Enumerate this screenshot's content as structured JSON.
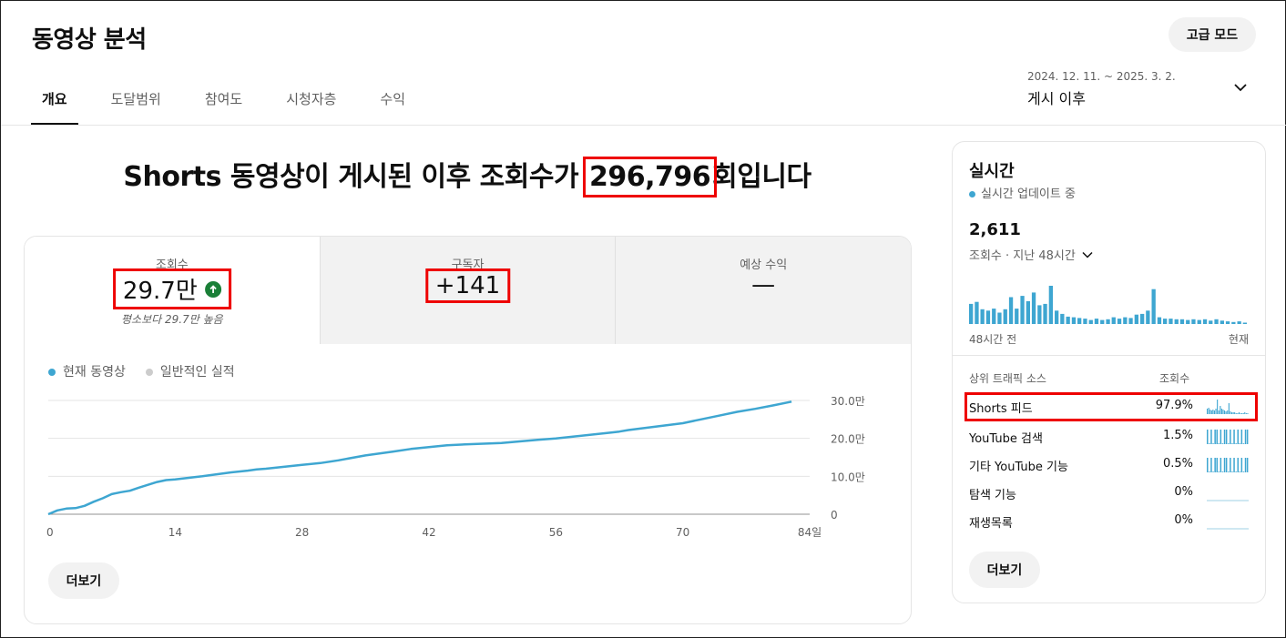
{
  "header": {
    "title": "동영상 분석",
    "advanced_mode": "고급 모드",
    "date_range": "2024. 12. 11. ~ 2025. 3. 2.",
    "date_label": "게시 이후"
  },
  "tabs": [
    {
      "label": "개요",
      "active": true
    },
    {
      "label": "도달범위",
      "active": false
    },
    {
      "label": "참여도",
      "active": false
    },
    {
      "label": "시청자층",
      "active": false
    },
    {
      "label": "수익",
      "active": false
    }
  ],
  "headline": {
    "prefix": "Shorts 동영상이 게시된 이후 조회수가 ",
    "value": "296,796",
    "suffix": "회입니다"
  },
  "metrics": [
    {
      "label": "조회수",
      "value": "29.7만",
      "sub": "평소보다 29.7만 높음",
      "trend": "up-icon"
    },
    {
      "label": "구독자",
      "value": "+141",
      "sub": ""
    },
    {
      "label": "예상 수익",
      "value": "—",
      "sub": ""
    }
  ],
  "chart_data": {
    "type": "line",
    "legend": [
      {
        "name": "현재 동영상",
        "color": "#3ea6d1"
      },
      {
        "name": "일반적인 실적",
        "color": "#cccccc"
      }
    ],
    "x_ticks": [
      "0",
      "14",
      "28",
      "42",
      "56",
      "70",
      "84일"
    ],
    "y_ticks": [
      "0",
      "10.0만",
      "20.0만",
      "30.0만"
    ],
    "xlim": [
      0,
      84
    ],
    "ylim": [
      0,
      300000
    ],
    "grid": true,
    "series": [
      {
        "name": "현재 동영상",
        "x": [
          0,
          1,
          2,
          3,
          4,
          5,
          6,
          7,
          8,
          9,
          10,
          12,
          13,
          14,
          17,
          20,
          22,
          23,
          24,
          26,
          28,
          30,
          32,
          35,
          38,
          40,
          42,
          44,
          46,
          48,
          50,
          52,
          54,
          56,
          58,
          60,
          62,
          63,
          64,
          66,
          68,
          70,
          72,
          74,
          76,
          78,
          80,
          82
        ],
        "y": [
          0,
          10000,
          15000,
          16000,
          22000,
          33000,
          42000,
          53000,
          58000,
          62000,
          70000,
          85000,
          90000,
          92000,
          100000,
          110000,
          115000,
          118000,
          120000,
          125000,
          130000,
          135000,
          142000,
          155000,
          165000,
          172000,
          177000,
          182000,
          184000,
          186000,
          188000,
          192000,
          196000,
          200000,
          205000,
          210000,
          215000,
          218000,
          222000,
          228000,
          234000,
          240000,
          250000,
          260000,
          270000,
          278000,
          287000,
          297000
        ]
      }
    ]
  },
  "more_label": "더보기",
  "realtime": {
    "title": "실시간",
    "status": "실시간 업데이트 중",
    "count": "2,611",
    "metric_label": "조회수 · 지난 48시간",
    "axis_left": "48시간 전",
    "axis_right": "현재",
    "bars": [
      30,
      33,
      22,
      20,
      23,
      17,
      22,
      40,
      23,
      42,
      34,
      47,
      28,
      30,
      57,
      20,
      15,
      11,
      10,
      9,
      8,
      6,
      8,
      6,
      7,
      10,
      8,
      10,
      9,
      14,
      15,
      20,
      52,
      10,
      8,
      8,
      7,
      7,
      6,
      7,
      6,
      7,
      5,
      7,
      5,
      4,
      3,
      4,
      2
    ],
    "traffic_header_source": "상위 트래픽 소스",
    "traffic_header_views": "조회수",
    "traffic": [
      {
        "name": "Shorts 피드",
        "value": "97.9%",
        "highlight": true
      },
      {
        "name": "YouTube 검색",
        "value": "1.5%",
        "highlight": false
      },
      {
        "name": "기타 YouTube 기능",
        "value": "0.5%",
        "highlight": false
      },
      {
        "name": "탐색 기능",
        "value": "0%",
        "highlight": false
      },
      {
        "name": "재생목록",
        "value": "0%",
        "highlight": false
      }
    ]
  },
  "colors": {
    "accent": "#3ea6d1",
    "highlight": "#ee0000",
    "positive": "#1a7f37"
  }
}
